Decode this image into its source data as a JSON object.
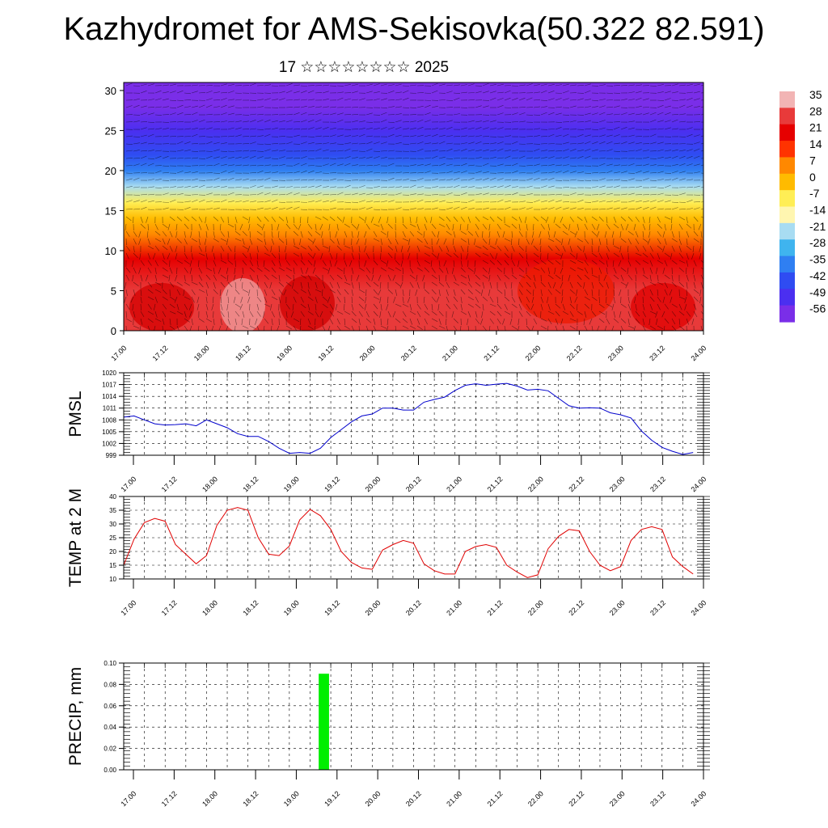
{
  "title": "Kazhydromet for AMS-Sekisovka(50.322 82.591)",
  "subtitle": "17 ☆☆☆☆☆☆☆☆ 2025",
  "chart_data": [
    {
      "type": "heatmap",
      "name": "cross-section",
      "x_ticks": [
        "17.00",
        "17.12",
        "18.00",
        "18.12",
        "19.00",
        "19.12",
        "20.00",
        "20.12",
        "21.00",
        "21.12",
        "22.00",
        "22.12",
        "23.00",
        "23.12",
        "24.00"
      ],
      "y_ticks": [
        0,
        5,
        10,
        15,
        20,
        25,
        30
      ],
      "ylim": [
        0,
        31
      ],
      "colorbar": {
        "labels": [
          "35",
          "28",
          "21",
          "14",
          "7",
          "0",
          "-7",
          "-14",
          "-21",
          "-28",
          "-35",
          "-42",
          "-49",
          "-56"
        ],
        "colors": [
          "#f2b4b4",
          "#e83a3a",
          "#e60000",
          "#ff3300",
          "#ff8800",
          "#ffbb00",
          "#ffee55",
          "#fff6b0",
          "#a8dcf2",
          "#3fb4ef",
          "#2f7ff2",
          "#2f4cf2",
          "#4b2ff0",
          "#7a2ee8"
        ]
      },
      "temperature_profile": {
        "heights": [
          0,
          5,
          9,
          12,
          14,
          16,
          18,
          20,
          22,
          25,
          28,
          31
        ],
        "values": [
          30,
          25,
          18,
          10,
          3,
          -8,
          -22,
          -32,
          -42,
          -50,
          -55,
          -57
        ]
      }
    },
    {
      "type": "line",
      "ylabel": "PMSL",
      "y_ticks": [
        999,
        1002,
        1005,
        1008,
        1011,
        1014,
        1017,
        1020
      ],
      "ylim": [
        999,
        1020
      ],
      "x_ticks": [
        "17.00",
        "17.12",
        "18.00",
        "18.12",
        "19.00",
        "19.12",
        "20.00",
        "20.12",
        "21.00",
        "21.12",
        "22.00",
        "22.12",
        "23.00",
        "23.12",
        "24.00"
      ],
      "color": "#0000cc",
      "x": [
        0,
        3,
        6,
        9,
        12,
        15,
        18,
        21,
        24,
        27,
        30,
        33,
        36,
        39,
        42,
        45,
        48,
        51,
        54,
        57,
        60,
        63,
        66,
        69,
        72,
        75,
        78,
        81,
        84,
        87,
        90,
        93,
        96,
        99,
        102,
        105,
        108,
        111,
        114,
        117,
        120,
        123,
        126,
        129,
        132,
        135,
        138,
        141,
        144,
        147,
        150,
        153,
        156,
        159,
        162,
        165
      ],
      "values": [
        1008.7,
        1009.0,
        1008.0,
        1007.0,
        1006.7,
        1006.8,
        1007.0,
        1006.5,
        1008.0,
        1007.0,
        1006.0,
        1004.5,
        1003.8,
        1003.8,
        1002.5,
        1000.8,
        999.5,
        999.7,
        999.5,
        1000.8,
        1003.5,
        1005.5,
        1007.5,
        1009.0,
        1009.5,
        1011.0,
        1011.0,
        1010.5,
        1010.5,
        1012.5,
        1013.2,
        1013.8,
        1015.5,
        1016.8,
        1017.2,
        1016.8,
        1017.1,
        1017.3,
        1016.6,
        1015.6,
        1015.8,
        1015.4,
        1013.5,
        1011.6,
        1011.0,
        1011.1,
        1011.0,
        1009.8,
        1009.3,
        1008.5,
        1005.2,
        1002.8,
        1001.0,
        1000.0,
        999.2,
        999.7
      ]
    },
    {
      "type": "line",
      "ylabel": "TEMP at 2 M",
      "y_ticks": [
        10,
        15,
        20,
        25,
        30,
        35,
        40
      ],
      "ylim": [
        10,
        40
      ],
      "x_ticks": [
        "17.00",
        "17.12",
        "18.00",
        "18.12",
        "19.00",
        "19.12",
        "20.00",
        "20.12",
        "21.00",
        "21.12",
        "22.00",
        "22.12",
        "23.00",
        "23.12",
        "24.00"
      ],
      "color": "#e00000",
      "x": [
        0,
        3,
        6,
        9,
        12,
        15,
        18,
        21,
        24,
        27,
        30,
        33,
        36,
        39,
        42,
        45,
        48,
        51,
        54,
        57,
        60,
        63,
        66,
        69,
        72,
        75,
        78,
        81,
        84,
        87,
        90,
        93,
        96,
        99,
        102,
        105,
        108,
        111,
        114,
        117,
        120,
        123,
        126,
        129,
        132,
        135,
        138,
        141,
        144,
        147,
        150,
        153,
        156,
        159,
        162,
        165
      ],
      "values": [
        15,
        24.5,
        30.5,
        32,
        31,
        22.5,
        19,
        15.5,
        18.5,
        29.5,
        35,
        36,
        35,
        25,
        19,
        18.5,
        22,
        31.5,
        35.3,
        33,
        28,
        20,
        16,
        14,
        13.5,
        20.5,
        22.5,
        24,
        23,
        15.5,
        13,
        11.8,
        11.8,
        20,
        21.8,
        22.5,
        21.5,
        15,
        12.5,
        10.5,
        11.5,
        21,
        25.5,
        28,
        27.5,
        20,
        15,
        13,
        14.5,
        24,
        28,
        29,
        28,
        18,
        14.5,
        11.8
      ]
    },
    {
      "type": "bar",
      "ylabel": "PRECIP, mm",
      "y_ticks": [
        "0.00",
        "0.02",
        "0.04",
        "0.06",
        "0.08",
        "0.10"
      ],
      "ylim": [
        0,
        0.1
      ],
      "x_ticks": [
        "17.00",
        "17.12",
        "18.00",
        "18.12",
        "19.00",
        "19.12",
        "20.00",
        "20.12",
        "21.00",
        "21.12",
        "22.00",
        "22.12",
        "23.00",
        "23.12",
        "24.00"
      ],
      "color": "#00ee00",
      "bars": [
        {
          "x_start": 56.5,
          "x_end": 59.5,
          "value": 0.09
        }
      ]
    }
  ]
}
